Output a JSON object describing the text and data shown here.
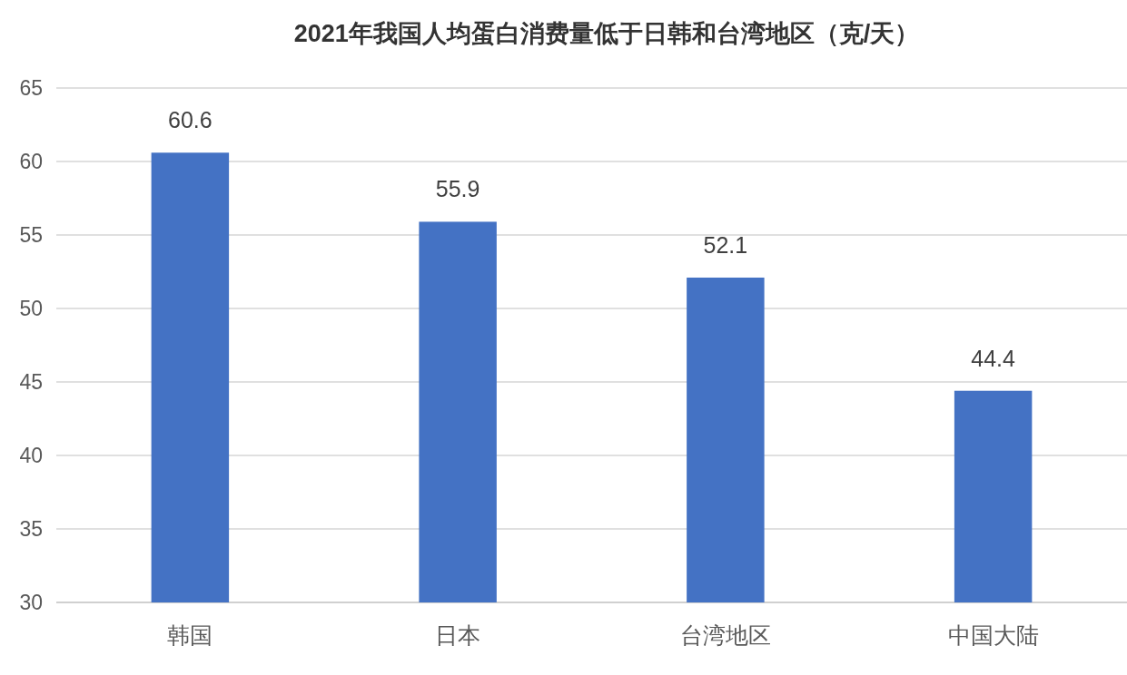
{
  "chart_data": {
    "type": "bar",
    "title": "2021年我国人均蛋白消费量低于日韩和台湾地区（克/天）",
    "categories": [
      "韩国",
      "日本",
      "台湾地区",
      "中国大陆"
    ],
    "values": [
      60.6,
      55.9,
      52.1,
      44.4
    ],
    "color": "#4472c4",
    "ylim": [
      30,
      65
    ],
    "yticks": [
      30,
      35,
      40,
      45,
      50,
      55,
      60,
      65
    ],
    "grid": "y",
    "data_labels": true
  }
}
